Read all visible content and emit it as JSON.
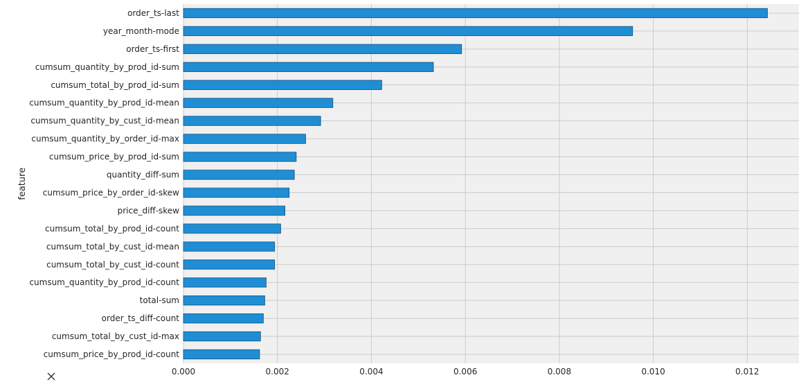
{
  "chart_data": {
    "type": "bar",
    "orientation": "horizontal",
    "title": "",
    "xlabel": "",
    "ylabel": "feature",
    "xlim": [
      0,
      0.0131
    ],
    "x_ticks": [
      0.0,
      0.002,
      0.004,
      0.006,
      0.008,
      0.01,
      0.012
    ],
    "x_tick_labels": [
      "0.000",
      "0.002",
      "0.004",
      "0.006",
      "0.008",
      "0.010",
      "0.012"
    ],
    "grid": true,
    "colors": {
      "bar": "#1f8ed4",
      "bar_edge": "#1a4f78",
      "plot_bg": "#f0f0f0",
      "grid": "#cbcbcb"
    },
    "categories": [
      "order_ts-last",
      "year_month-mode",
      "order_ts-first",
      "cumsum_quantity_by_prod_id-sum",
      "cumsum_total_by_prod_id-sum",
      "cumsum_quantity_by_prod_id-mean",
      "cumsum_quantity_by_cust_id-mean",
      "cumsum_quantity_by_order_id-max",
      "cumsum_price_by_prod_id-sum",
      "quantity_diff-sum",
      "cumsum_price_by_order_id-skew",
      "price_diff-skew",
      "cumsum_total_by_prod_id-count",
      "cumsum_total_by_cust_id-mean",
      "cumsum_total_by_cust_id-count",
      "cumsum_quantity_by_prod_id-count",
      "total-sum",
      "order_ts_diff-count",
      "cumsum_total_by_cust_id-max",
      "cumsum_price_by_prod_id-count"
    ],
    "values": [
      0.01243,
      0.00956,
      0.00592,
      0.00532,
      0.00422,
      0.00318,
      0.00292,
      0.0026,
      0.0024,
      0.00236,
      0.00225,
      0.00216,
      0.00207,
      0.00194,
      0.00194,
      0.00176,
      0.00173,
      0.0017,
      0.00164,
      0.00162
    ]
  },
  "icons": {
    "bottom_left": "x-icon"
  }
}
